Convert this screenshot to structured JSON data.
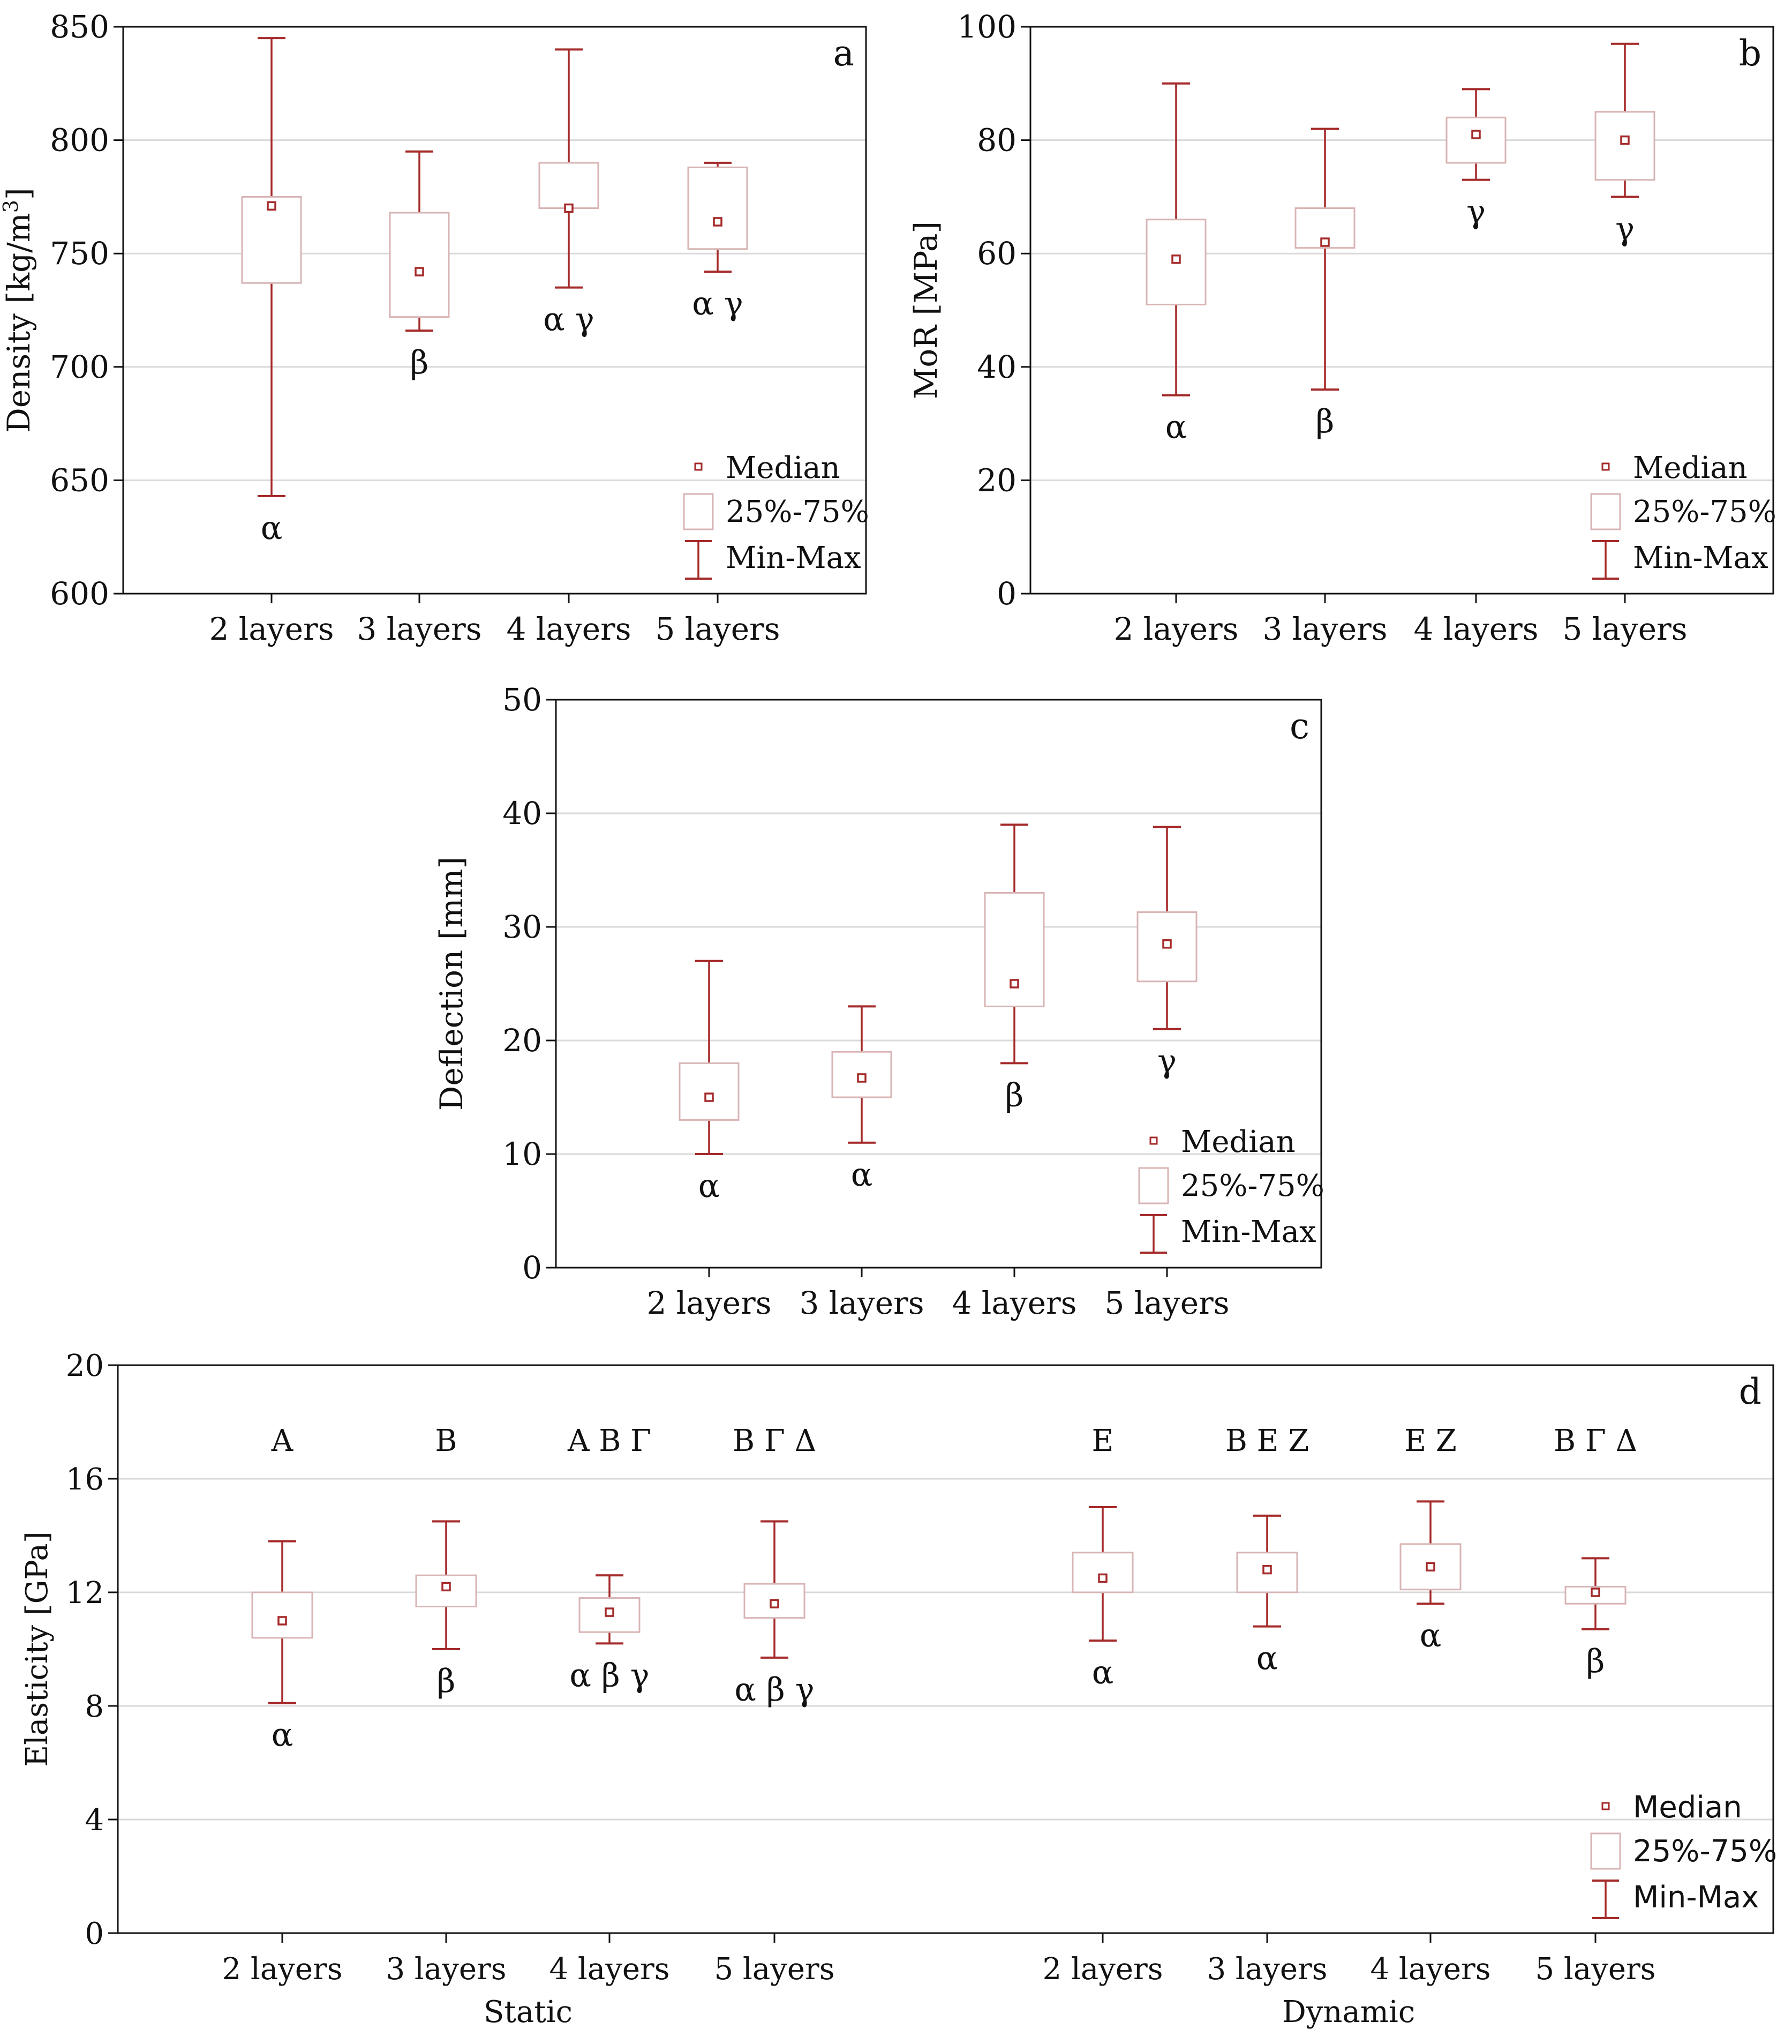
{
  "colors": {
    "whisker": "#a52a2a",
    "box_stroke": "#d8b4b4",
    "box_fill": "#ffffff",
    "grid": "#d9d9d9",
    "axis": "#111111",
    "text": "#111111"
  },
  "chart_data": [
    {
      "id": "a",
      "type": "box",
      "panel_label": "a",
      "ylabel": "Density [kg/m",
      "ylabel_sup": "3",
      "ylabel_end": "]",
      "ylim": [
        600,
        850
      ],
      "yticks": [
        600,
        650,
        700,
        750,
        800,
        850
      ],
      "grid": true,
      "categories": [
        "2 layers",
        "3 layers",
        "4 layers",
        "5 layers"
      ],
      "boxes": [
        {
          "min": 643,
          "q1": 737,
          "median": 771,
          "q3": 775,
          "max": 845,
          "label": "α"
        },
        {
          "min": 716,
          "q1": 722,
          "median": 742,
          "q3": 768,
          "max": 795,
          "label": "β"
        },
        {
          "min": 735,
          "q1": 770,
          "median": 770,
          "q3": 790,
          "max": 840,
          "label": "α γ"
        },
        {
          "min": 742,
          "q1": 752,
          "median": 764,
          "q3": 788,
          "max": 790,
          "label": "α γ"
        }
      ],
      "legend": {
        "placement": "bottom-right",
        "median": "Median",
        "box": "25%-75%",
        "whisker": "Min-Max"
      }
    },
    {
      "id": "b",
      "type": "box",
      "panel_label": "b",
      "ylabel": "MoR [MPa]",
      "ylim": [
        0,
        100
      ],
      "yticks": [
        0,
        20,
        40,
        60,
        80,
        100
      ],
      "grid": true,
      "categories": [
        "2 layers",
        "3 layers",
        "4 layers",
        "5 layers"
      ],
      "boxes": [
        {
          "min": 35,
          "q1": 51,
          "median": 59,
          "q3": 66,
          "max": 90,
          "label": "α"
        },
        {
          "min": 36,
          "q1": 61,
          "median": 62,
          "q3": 68,
          "max": 82,
          "label": "β"
        },
        {
          "min": 73,
          "q1": 76,
          "median": 81,
          "q3": 84,
          "max": 89,
          "label": "γ"
        },
        {
          "min": 70,
          "q1": 73,
          "median": 80,
          "q3": 85,
          "max": 97,
          "label": "γ"
        }
      ],
      "legend": {
        "placement": "bottom-right",
        "median": "Median",
        "box": "25%-75%",
        "whisker": "Min-Max"
      }
    },
    {
      "id": "c",
      "type": "box",
      "panel_label": "c",
      "ylabel": "Deflection [mm]",
      "ylim": [
        0,
        50
      ],
      "yticks": [
        0,
        10,
        20,
        30,
        40,
        50
      ],
      "grid": true,
      "categories": [
        "2 layers",
        "3 layers",
        "4 layers",
        "5 layers"
      ],
      "boxes": [
        {
          "min": 10,
          "q1": 13,
          "median": 15,
          "q3": 18,
          "max": 27,
          "label": "α"
        },
        {
          "min": 11,
          "q1": 15,
          "median": 16.7,
          "q3": 19,
          "max": 23,
          "label": "α"
        },
        {
          "min": 18,
          "q1": 23,
          "median": 25,
          "q3": 33,
          "max": 39,
          "label": "β"
        },
        {
          "min": 21,
          "q1": 25.2,
          "median": 28.5,
          "q3": 31.3,
          "max": 38.8,
          "label": "γ"
        }
      ],
      "legend": {
        "placement": "bottom-right",
        "median": "Median",
        "box": "25%-75%",
        "whisker": "Min-Max"
      }
    },
    {
      "id": "d",
      "type": "box",
      "panel_label": "d",
      "ylabel": "Elasticity [GPa]",
      "ylim": [
        0,
        20
      ],
      "yticks": [
        0,
        4,
        8,
        12,
        16,
        20
      ],
      "grid": true,
      "groups": [
        "Static",
        "Dynamic"
      ],
      "categories": [
        "2 layers",
        "3 layers",
        "4 layers",
        "5 layers",
        "2 layers",
        "3 layers",
        "4 layers",
        "5 layers"
      ],
      "boxes": [
        {
          "group": "Static",
          "min": 8.1,
          "q1": 10.4,
          "median": 11.0,
          "q3": 12.0,
          "max": 13.8,
          "upper": "A",
          "label": "α"
        },
        {
          "group": "Static",
          "min": 10.0,
          "q1": 11.5,
          "median": 12.2,
          "q3": 12.6,
          "max": 14.5,
          "upper": "B",
          "label": "β"
        },
        {
          "group": "Static",
          "min": 10.2,
          "q1": 10.6,
          "median": 11.3,
          "q3": 11.8,
          "max": 12.6,
          "upper": "A B Γ",
          "label": "α β γ"
        },
        {
          "group": "Static",
          "min": 9.7,
          "q1": 11.1,
          "median": 11.6,
          "q3": 12.3,
          "max": 14.5,
          "upper": "B Γ Δ",
          "label": "α β γ"
        },
        {
          "group": "Dynamic",
          "min": 10.3,
          "q1": 12.0,
          "median": 12.5,
          "q3": 13.4,
          "max": 15.0,
          "upper": "E",
          "label": "α"
        },
        {
          "group": "Dynamic",
          "min": 10.8,
          "q1": 12.0,
          "median": 12.8,
          "q3": 13.4,
          "max": 14.7,
          "upper": "B E Z",
          "label": "α"
        },
        {
          "group": "Dynamic",
          "min": 11.6,
          "q1": 12.1,
          "median": 12.9,
          "q3": 13.7,
          "max": 15.2,
          "upper": "E Z",
          "label": "α"
        },
        {
          "group": "Dynamic",
          "min": 10.7,
          "q1": 11.6,
          "median": 12.0,
          "q3": 12.2,
          "max": 13.2,
          "upper": "B Γ Δ",
          "label": "β"
        }
      ],
      "legend": {
        "placement": "bottom-right",
        "median": "Median",
        "box": "25%-75%",
        "whisker": "Min-Max"
      }
    }
  ]
}
